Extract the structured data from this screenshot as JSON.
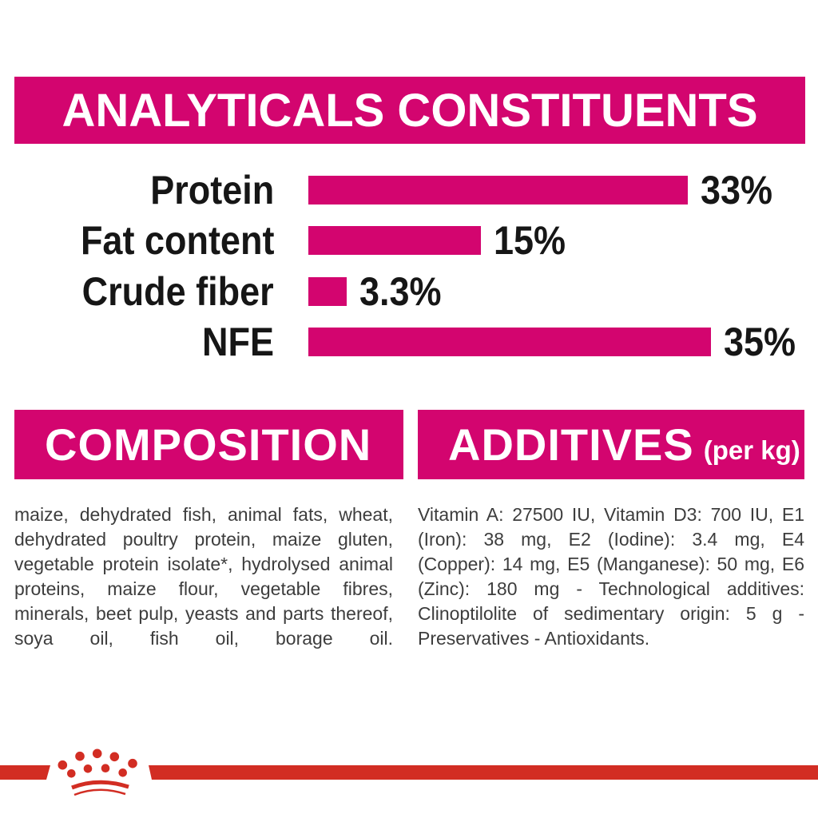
{
  "colors": {
    "magenta": "#D3056F",
    "red": "#D22D23",
    "label_black": "#161616",
    "body_gray": "#3d3d3d",
    "background": "#ffffff"
  },
  "header": {
    "title": "ANALYTICALS CONSTITUENTS"
  },
  "chart_data": {
    "type": "bar",
    "orientation": "horizontal",
    "title": "ANALYTICALS CONSTITUENTS",
    "categories": [
      "Protein",
      "Fat content",
      "Crude fiber",
      "NFE"
    ],
    "values": [
      33,
      15,
      3.3,
      35
    ],
    "value_labels": [
      "33%",
      "15%",
      "3.3%",
      "35%"
    ],
    "bar_color": "#D3056F",
    "xlim": [
      0,
      35
    ],
    "grid": false,
    "legend": false,
    "value_label_position": "right-of-bar"
  },
  "composition": {
    "heading": "COMPOSITION",
    "body": "maize, dehydrated fish, animal fats, wheat, dehydrated poultry protein, maize gluten, vegetable protein isolate*, hydrolysed animal proteins, maize flour, vegetable fibres, minerals, beet pulp, yeasts and parts thereof, soya oil, fish oil, borage oil."
  },
  "additives": {
    "heading": "ADDITIVES",
    "heading_suffix": "(per kg)",
    "body": "Vitamin A: 27500 IU, Vitamin D3: 700 IU, E1 (Iron): 38 mg, E2 (Iodine): 3.4 mg, E4 (Copper): 14 mg, E5 (Manganese): 50 mg, E6 (Zinc): 180 mg - Technological additives: Clinoptilolite of sedimentary origin: 5 g - Preservatives - Antioxidants."
  },
  "footer": {
    "logo_icon": "royal-canin-crown-logo",
    "band_color": "#D22D23"
  }
}
